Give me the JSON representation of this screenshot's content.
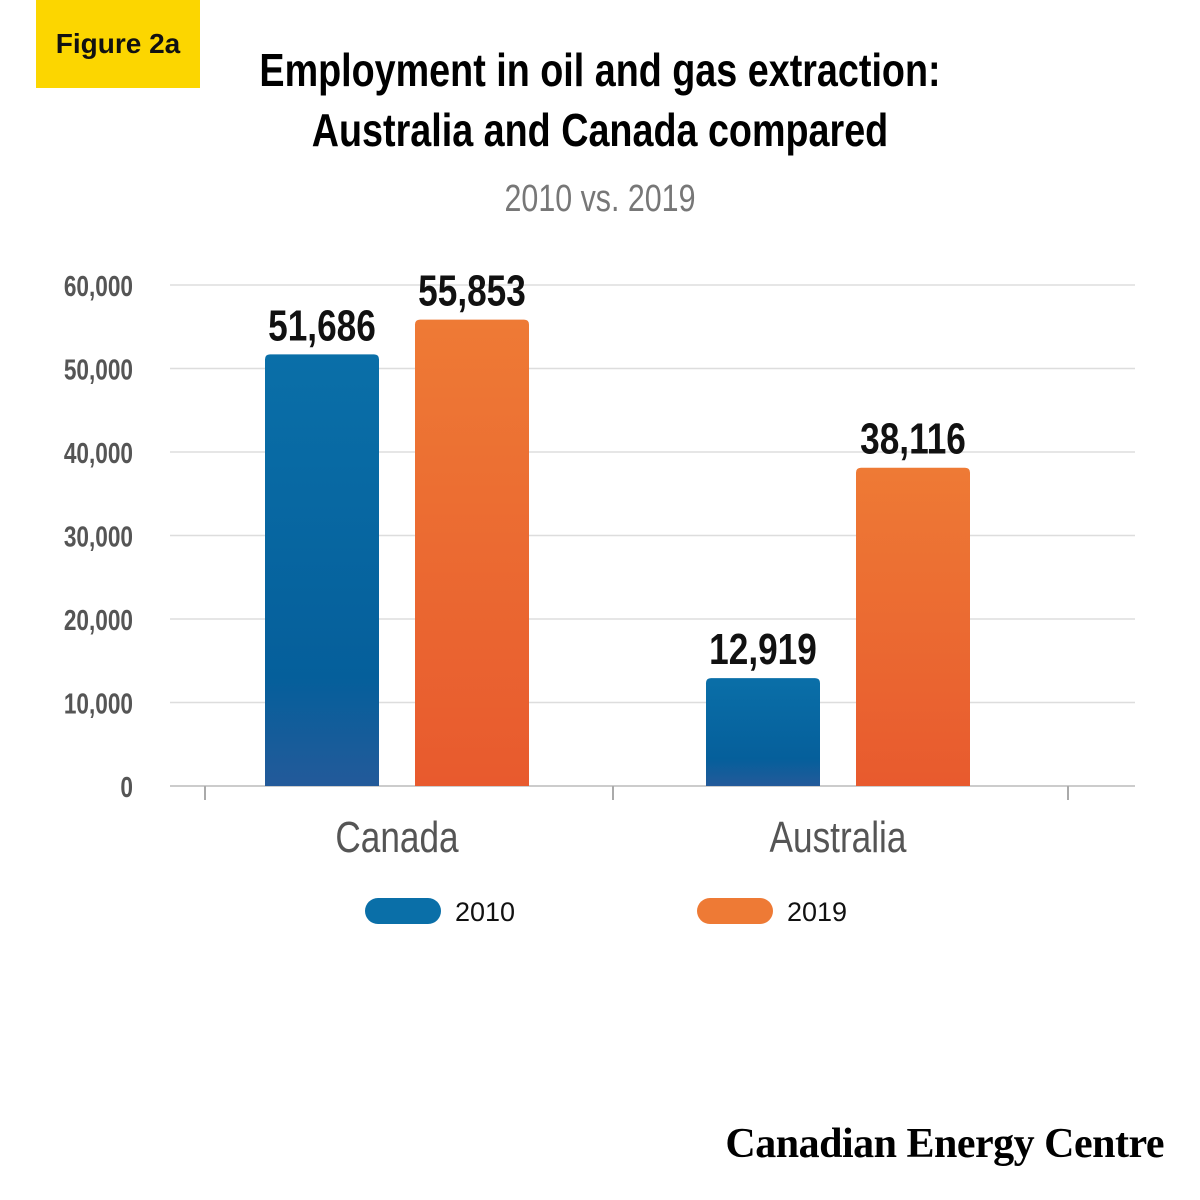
{
  "badge": "Figure 2a",
  "title_line1": "Employment in oil and gas extraction:",
  "title_line2": "Australia and Canada compared",
  "subtitle": "2010 vs. 2019",
  "brand": "Canadian Energy Centre",
  "colors": {
    "s2010": "#0a6fa8",
    "s2010_bottom": "#235a9a",
    "s2019": "#ee7a35",
    "s2019_bottom": "#e85a2e",
    "grid": "#dddddd",
    "badge": "#fcd600"
  },
  "chart_data": {
    "type": "bar",
    "categories": [
      "Canada",
      "Australia"
    ],
    "series": [
      {
        "name": "2010",
        "values": [
          51686,
          12919
        ],
        "labels": [
          "51,686",
          "12,919"
        ]
      },
      {
        "name": "2019",
        "values": [
          55853,
          38116
        ],
        "labels": [
          "55,853",
          "38,116"
        ]
      }
    ],
    "yticks": [
      0,
      10000,
      20000,
      30000,
      40000,
      50000,
      60000
    ],
    "ytick_labels": [
      "0",
      "10,000",
      "20,000",
      "30,000",
      "40,000",
      "50,000",
      "60,000"
    ],
    "ylim": [
      0,
      60000
    ],
    "grid": true,
    "legend": "bottom"
  }
}
